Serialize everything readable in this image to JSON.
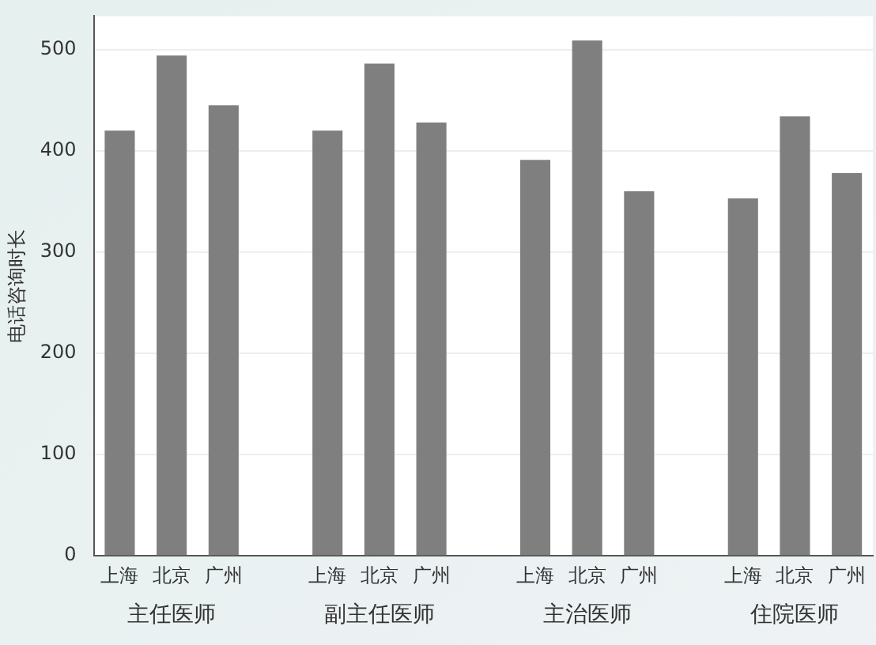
{
  "chart_data": {
    "type": "bar",
    "ylabel": "电话咨询时长",
    "categories": [
      "上海",
      "北京",
      "广州",
      null,
      "上海",
      "北京",
      "广州",
      null,
      "上海",
      "北京",
      "广州",
      null,
      "上海",
      "北京",
      "广州"
    ],
    "values": [
      420,
      494,
      445,
      null,
      420,
      486,
      428,
      null,
      391,
      509,
      360,
      null,
      353,
      434,
      378
    ],
    "color": "#7f7f7f",
    "ylim": [
      0,
      533
    ],
    "yticks": [
      0,
      100,
      200,
      300,
      400,
      500
    ],
    "grid": "y",
    "legend": false,
    "annotations": [
      "主任医师",
      "副主任医师",
      "主治医师",
      "住院医师"
    ]
  }
}
